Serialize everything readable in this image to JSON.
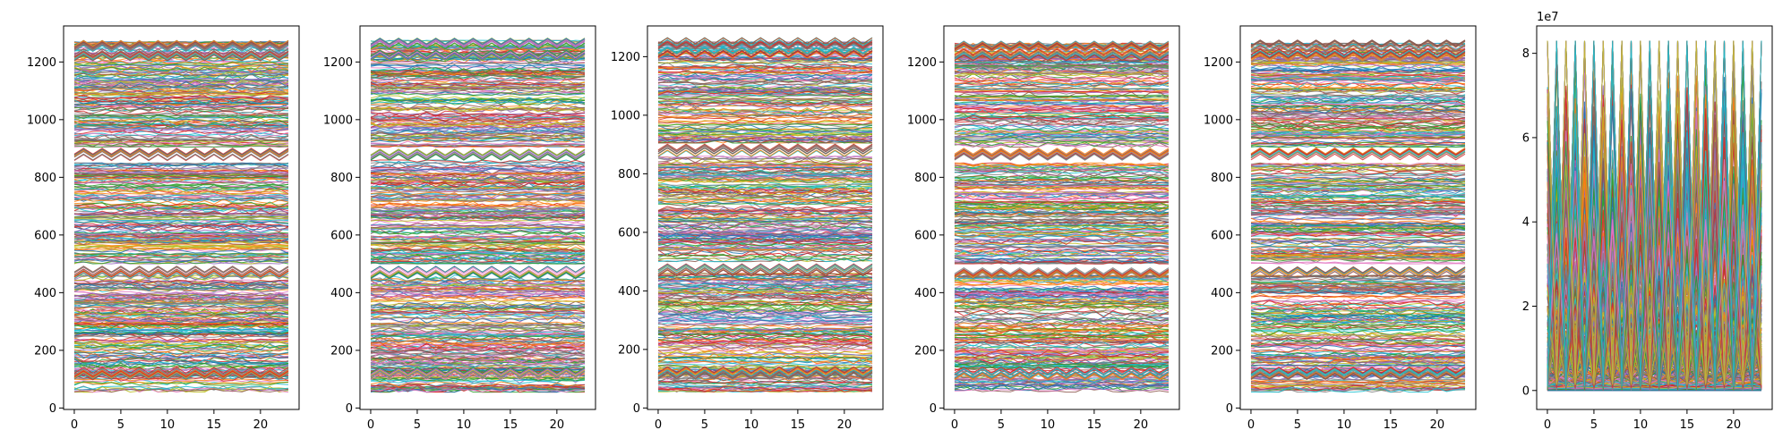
{
  "figure": {
    "background": "#ffffff",
    "palette": [
      "#1f77b4",
      "#ff7f0e",
      "#2ca02c",
      "#d62728",
      "#9467bd",
      "#8c564b",
      "#e377c2",
      "#7f7f7f",
      "#bcbd22",
      "#17becf"
    ]
  },
  "chart_data": [
    {
      "type": "line",
      "title": "",
      "xlabel": "",
      "ylabel": "",
      "x": [
        0,
        1,
        2,
        3,
        4,
        5,
        6,
        7,
        8,
        9,
        10,
        11,
        12,
        13,
        14,
        15,
        16,
        17,
        18,
        19,
        20,
        21,
        22,
        23
      ],
      "xlim": [
        -1.15,
        24.15
      ],
      "ylim": [
        -5,
        1325
      ],
      "xticks": [
        0,
        5,
        10,
        15,
        20
      ],
      "xtick_labels": [
        "0",
        "5",
        "10",
        "15",
        "20"
      ],
      "yticks": [
        0,
        200,
        400,
        600,
        800,
        1000,
        1200
      ],
      "ytick_labels": [
        "0",
        "200",
        "400",
        "600",
        "800",
        "1000",
        "1200"
      ],
      "bands": [
        [
          55,
          460
        ],
        [
          500,
          850
        ],
        [
          905,
          1270
        ]
      ],
      "zigzag_levels": [
        120,
        470,
        880,
        1225,
        1258
      ],
      "series_count_estimate": 1200,
      "grid": false,
      "legend": "none"
    },
    {
      "type": "line",
      "title": "",
      "xlabel": "",
      "ylabel": "",
      "x": [
        0,
        1,
        2,
        3,
        4,
        5,
        6,
        7,
        8,
        9,
        10,
        11,
        12,
        13,
        14,
        15,
        16,
        17,
        18,
        19,
        20,
        21,
        22,
        23
      ],
      "xlim": [
        -1.15,
        24.15
      ],
      "ylim": [
        -5,
        1325
      ],
      "xticks": [
        0,
        5,
        10,
        15,
        20
      ],
      "xtick_labels": [
        "0",
        "5",
        "10",
        "15",
        "20"
      ],
      "yticks": [
        0,
        200,
        400,
        600,
        800,
        1000,
        1200
      ],
      "ytick_labels": [
        "0",
        "200",
        "400",
        "600",
        "800",
        "1000",
        "1200"
      ],
      "bands": [
        [
          55,
          460
        ],
        [
          500,
          860
        ],
        [
          905,
          1275
        ]
      ],
      "zigzag_levels": [
        120,
        470,
        880,
        1225,
        1265
      ],
      "series_count_estimate": 1200,
      "grid": false,
      "legend": "none"
    },
    {
      "type": "line",
      "title": "",
      "xlabel": "",
      "ylabel": "",
      "x": [
        0,
        1,
        2,
        3,
        4,
        5,
        6,
        7,
        8,
        9,
        10,
        11,
        12,
        13,
        14,
        15,
        16,
        17,
        18,
        19,
        20,
        21,
        22,
        23
      ],
      "xlim": [
        -1.15,
        24.15
      ],
      "ylim": [
        -5,
        1305
      ],
      "xticks": [
        0,
        5,
        10,
        15,
        20
      ],
      "xtick_labels": [
        "0",
        "5",
        "10",
        "15",
        "20"
      ],
      "yticks": [
        0,
        200,
        400,
        600,
        800,
        1000,
        1200
      ],
      "ytick_labels": [
        "0",
        "200",
        "400",
        "600",
        "800",
        "1000",
        "1200"
      ],
      "bands": [
        [
          55,
          460
        ],
        [
          500,
          860
        ],
        [
          905,
          1250
        ]
      ],
      "zigzag_levels": [
        120,
        470,
        880,
        1215,
        1245
      ],
      "series_count_estimate": 1200,
      "grid": false,
      "legend": "none"
    },
    {
      "type": "line",
      "title": "",
      "xlabel": "",
      "ylabel": "",
      "x": [
        0,
        1,
        2,
        3,
        4,
        5,
        6,
        7,
        8,
        9,
        10,
        11,
        12,
        13,
        14,
        15,
        16,
        17,
        18,
        19,
        20,
        21,
        22,
        23
      ],
      "xlim": [
        -1.15,
        24.15
      ],
      "ylim": [
        -5,
        1325
      ],
      "xticks": [
        0,
        5,
        10,
        15,
        20
      ],
      "xtick_labels": [
        "0",
        "5",
        "10",
        "15",
        "20"
      ],
      "yticks": [
        0,
        200,
        400,
        600,
        800,
        1000,
        1200
      ],
      "ytick_labels": [
        "0",
        "200",
        "400",
        "600",
        "800",
        "1000",
        "1200"
      ],
      "bands": [
        [
          55,
          460
        ],
        [
          500,
          850
        ],
        [
          905,
          1265
        ]
      ],
      "zigzag_levels": [
        120,
        470,
        880,
        1225,
        1255
      ],
      "series_count_estimate": 1200,
      "grid": false,
      "legend": "none"
    },
    {
      "type": "line",
      "title": "",
      "xlabel": "",
      "ylabel": "",
      "x": [
        0,
        1,
        2,
        3,
        4,
        5,
        6,
        7,
        8,
        9,
        10,
        11,
        12,
        13,
        14,
        15,
        16,
        17,
        18,
        19,
        20,
        21,
        22,
        23
      ],
      "xlim": [
        -1.15,
        24.15
      ],
      "ylim": [
        -5,
        1325
      ],
      "xticks": [
        0,
        5,
        10,
        15,
        20
      ],
      "xtick_labels": [
        "0",
        "5",
        "10",
        "15",
        "20"
      ],
      "yticks": [
        0,
        200,
        400,
        600,
        800,
        1000,
        1200
      ],
      "ytick_labels": [
        "0",
        "200",
        "400",
        "600",
        "800",
        "1000",
        "1200"
      ],
      "bands": [
        [
          55,
          460
        ],
        [
          500,
          850
        ],
        [
          905,
          1265
        ]
      ],
      "zigzag_levels": [
        120,
        470,
        880,
        1225,
        1255
      ],
      "series_count_estimate": 1200,
      "grid": false,
      "legend": "none"
    },
    {
      "type": "line",
      "title": "",
      "xlabel": "",
      "ylabel": "",
      "x": [
        0,
        1,
        2,
        3,
        4,
        5,
        6,
        7,
        8,
        9,
        10,
        11,
        12,
        13,
        14,
        15,
        16,
        17,
        18,
        19,
        20,
        21,
        22,
        23
      ],
      "xlim": [
        -1.15,
        24.15
      ],
      "ylim": [
        -4500000,
        86500000
      ],
      "xticks": [
        0,
        5,
        10,
        15,
        20
      ],
      "xtick_labels": [
        "0",
        "5",
        "10",
        "15",
        "20"
      ],
      "yticks": [
        0,
        20000000,
        40000000,
        60000000,
        80000000
      ],
      "ytick_labels": [
        "0",
        "2",
        "4",
        "6",
        "8"
      ],
      "offset_text": "1e7",
      "peak_value": 83000000,
      "series_count_estimate": 1200,
      "grid": false,
      "legend": "none"
    }
  ]
}
